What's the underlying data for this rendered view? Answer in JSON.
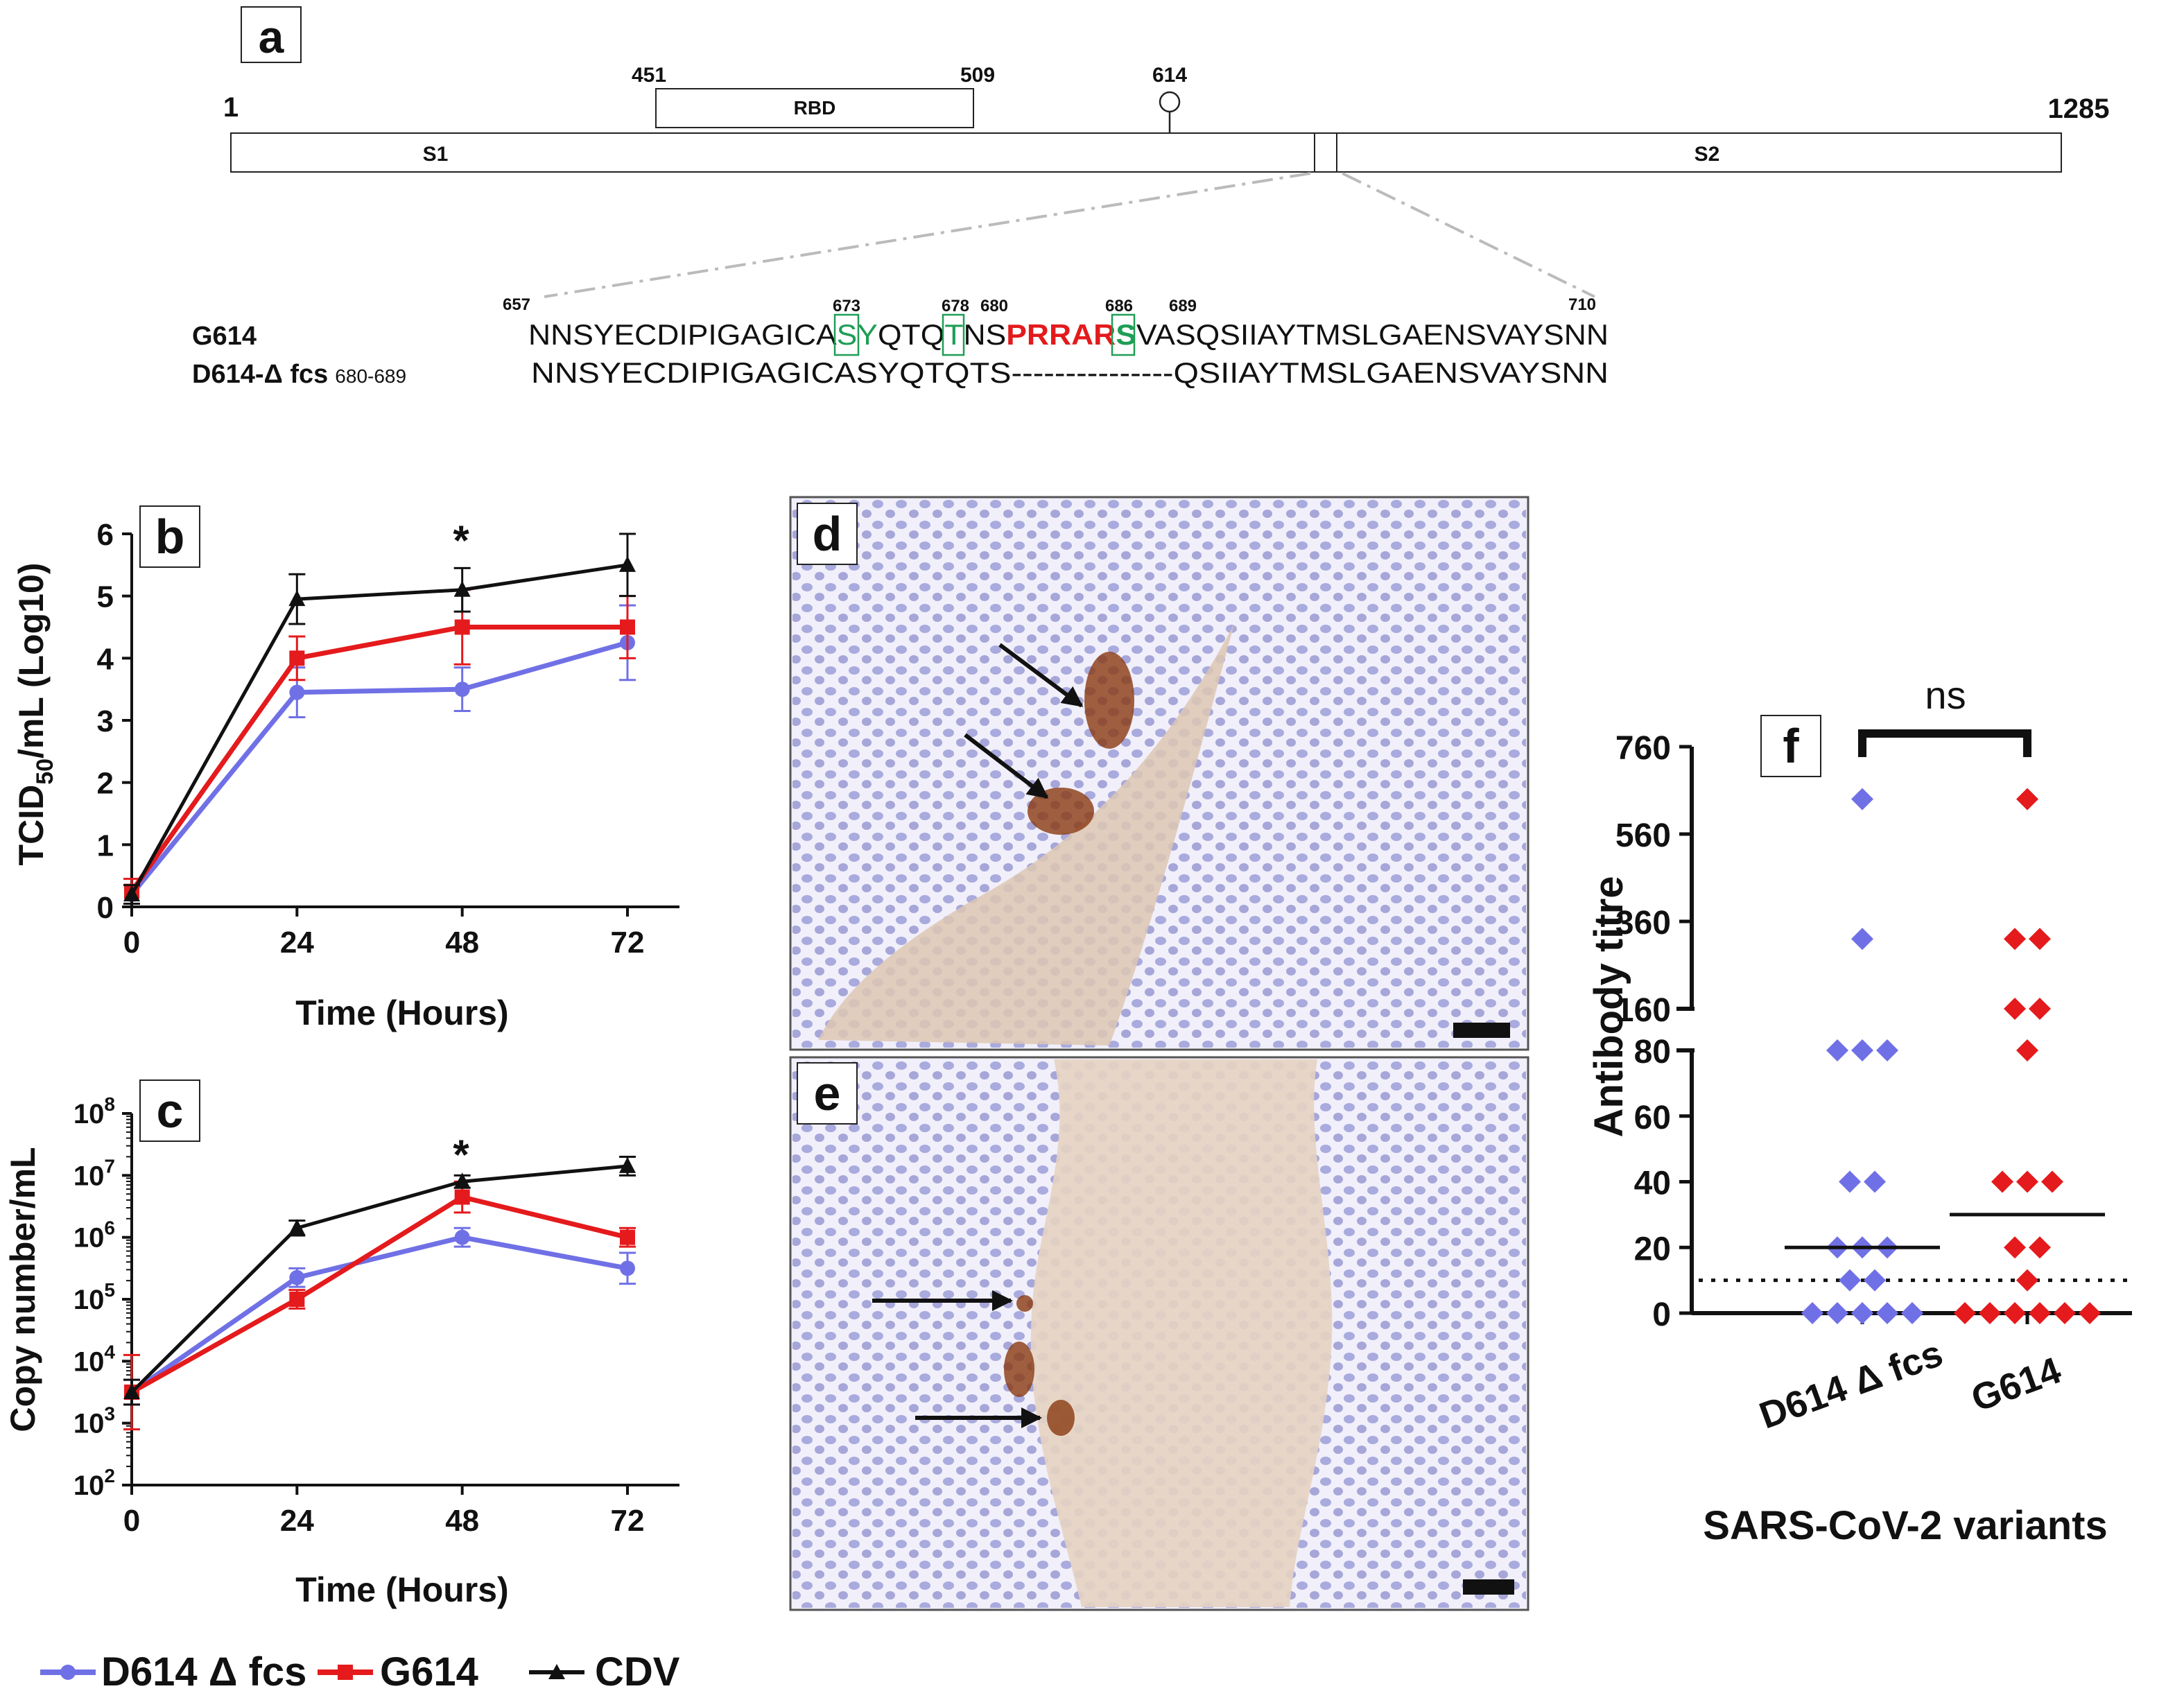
{
  "colors": {
    "blue": "#7070e6",
    "red": "#e41a1c",
    "black": "#111111",
    "highlight": "#e31a1c",
    "box_green": "#1f9e56"
  },
  "panel_a": {
    "label": "a",
    "start": "1",
    "end": "1285",
    "rbd": "RBD",
    "rbd_start": "451",
    "rbd_end": "509",
    "site": "614",
    "s1": "S1",
    "s2": "S2",
    "seq_start": "657",
    "seq_end": "710",
    "markers": [
      "673",
      "678",
      "680",
      "686",
      "689"
    ],
    "row1_label": "G614",
    "row2_label": "D614-Δ fcs",
    "row2_sub": "680-689",
    "seq1_pre": "NNSYECDIPIGAGICA",
    "seq1_s": "S",
    "seq1_y": "Y",
    "seq1_mid": "QTQ",
    "seq1_t": "T",
    "seq1_ns": "NS",
    "seq1_red": "PRRAR",
    "seq1_s2": "S",
    "seq1_post": "VASQSIIAYTMSLGAENSVAYSNN",
    "seq2": "NNSYECDIPIGAGICASYQTQTS---------------QSIIAYTMSLGAENSVAYSNN"
  },
  "panels_de": {
    "label_d": "d",
    "label_e": "e"
  },
  "legend": [
    "D614 Δ fcs",
    "G614",
    "CDV"
  ],
  "chart_data": [
    {
      "type": "line",
      "panel": "b",
      "xlabel": "Time (Hours)",
      "ylabel": "TCID50/mL (Log10)",
      "ylabel_main": "TCID",
      "ylabel_sub": "50",
      "ylabel_rest": "/mL (Log10)",
      "x": [
        0,
        24,
        48,
        72
      ],
      "xticks": [
        "0",
        "24",
        "48",
        "72"
      ],
      "yticks": [
        "0",
        "1",
        "2",
        "3",
        "4",
        "5",
        "6"
      ],
      "ylim": [
        0,
        6
      ],
      "annotation": "*",
      "annotation_x": 48,
      "series": [
        {
          "name": "D614 Δ fcs",
          "values": [
            0.2,
            3.45,
            3.5,
            4.25
          ],
          "errors": [
            0.15,
            0.4,
            0.35,
            0.6
          ]
        },
        {
          "name": "G614",
          "values": [
            0.25,
            4.0,
            4.5,
            4.5
          ],
          "errors": [
            0.2,
            0.35,
            0.6,
            0.5
          ]
        },
        {
          "name": "CDV",
          "values": [
            0.2,
            4.95,
            5.1,
            5.5
          ],
          "errors": [
            0.15,
            0.4,
            0.35,
            0.5
          ]
        }
      ]
    },
    {
      "type": "line",
      "panel": "c",
      "xlabel": "Time (Hours)",
      "ylabel": "Copy number/mL",
      "x": [
        0,
        24,
        48,
        72
      ],
      "xticks": [
        "0",
        "24",
        "48",
        "72"
      ],
      "yticks_exp": [
        "2",
        "3",
        "4",
        "5",
        "6",
        "7",
        "8"
      ],
      "ytick_base": "10",
      "yscale": "log",
      "ylim_log10": [
        2,
        8
      ],
      "annotation": "*",
      "annotation_x": 48,
      "series": [
        {
          "name": "D614 Δ fcs",
          "values_log10": [
            3.5,
            5.35,
            6.0,
            5.5
          ],
          "errors": [
            0.2,
            0.15,
            0.15,
            0.25
          ]
        },
        {
          "name": "G614",
          "values_log10": [
            3.5,
            5.0,
            6.65,
            6.0
          ],
          "errors": [
            0.6,
            0.15,
            0.25,
            0.15
          ]
        },
        {
          "name": "CDV",
          "values_log10": [
            3.5,
            6.15,
            6.9,
            7.15
          ],
          "errors": [
            0.2,
            0.12,
            0.1,
            0.15
          ]
        }
      ]
    },
    {
      "type": "scatter",
      "panel": "f",
      "xlabel": "SARS-CoV-2 variants",
      "ylabel": "Antibody titre",
      "categories": [
        "D614 Δ fcs",
        "G614"
      ],
      "yticks": [
        "0",
        "20",
        "40",
        "60",
        "80",
        "160",
        "360",
        "560",
        "760"
      ],
      "ylim": [
        0,
        760
      ],
      "yaxis_break": [
        80,
        160
      ],
      "threshold": 10,
      "significance": "ns",
      "series": [
        {
          "name": "D614 Δ fcs",
          "values": [
            640,
            320,
            80,
            80,
            80,
            40,
            40,
            20,
            20,
            20,
            10,
            10,
            0,
            0,
            0,
            0,
            0
          ],
          "median": 20
        },
        {
          "name": "G614",
          "values": [
            640,
            320,
            320,
            160,
            160,
            80,
            40,
            40,
            40,
            20,
            20,
            10,
            0,
            0,
            0,
            0,
            0,
            0
          ],
          "median": 30
        }
      ]
    }
  ]
}
